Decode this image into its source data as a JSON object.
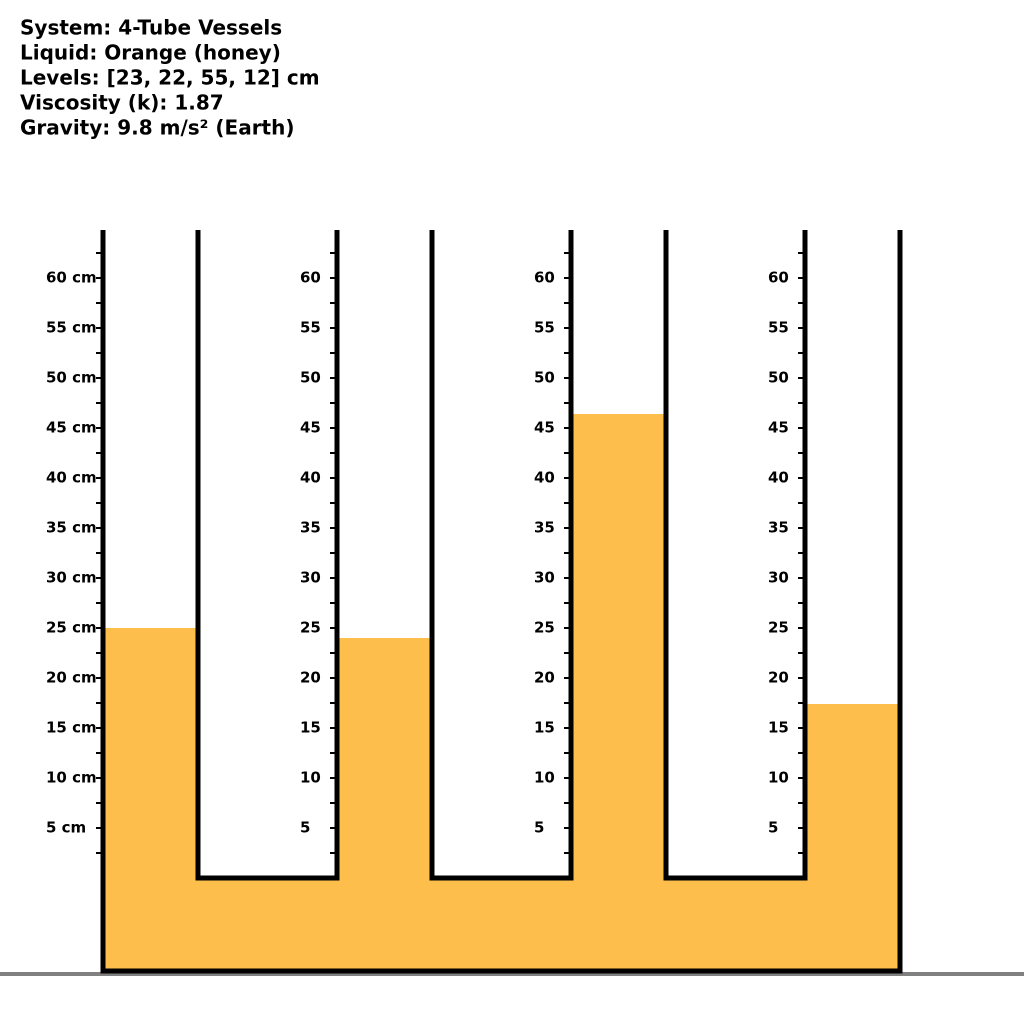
{
  "header": {
    "lines": [
      "System: 4-Tube Vessels",
      "Liquid: Orange (honey)",
      "Levels: [23, 22, 55, 12] cm",
      "Viscosity (k): 1.87",
      "Gravity: 9.8 m/s² (Earth)"
    ]
  },
  "vessel": {
    "ylim": [
      0,
      65
    ],
    "liquid_color": "#fdbe4c",
    "tubes": [
      {
        "level": 25,
        "ticks": [
          {
            "value": 60,
            "label": "60 cm"
          },
          {
            "value": 55,
            "label": "55 cm"
          },
          {
            "value": 50,
            "label": "50 cm"
          },
          {
            "value": 45,
            "label": "45 cm"
          },
          {
            "value": 40,
            "label": "40 cm"
          },
          {
            "value": 35,
            "label": "35 cm"
          },
          {
            "value": 30,
            "label": "30 cm"
          },
          {
            "value": 25,
            "label": "25 cm"
          },
          {
            "value": 20,
            "label": "20 cm"
          },
          {
            "value": 15,
            "label": "15 cm"
          },
          {
            "value": 10,
            "label": "10 cm"
          },
          {
            "value": 5,
            "label": "5 cm"
          }
        ]
      },
      {
        "level": 24,
        "ticks": [
          60,
          55,
          50,
          45,
          40,
          35,
          30,
          25,
          20,
          15,
          10,
          5
        ]
      },
      {
        "level": 46.4,
        "ticks": [
          60,
          55,
          50,
          45,
          40,
          35,
          30,
          25,
          20,
          15,
          10,
          5
        ]
      },
      {
        "level": 17.4,
        "ticks": [
          60,
          55,
          50,
          45,
          40,
          35,
          30,
          25,
          20,
          15,
          10,
          5
        ]
      }
    ]
  }
}
